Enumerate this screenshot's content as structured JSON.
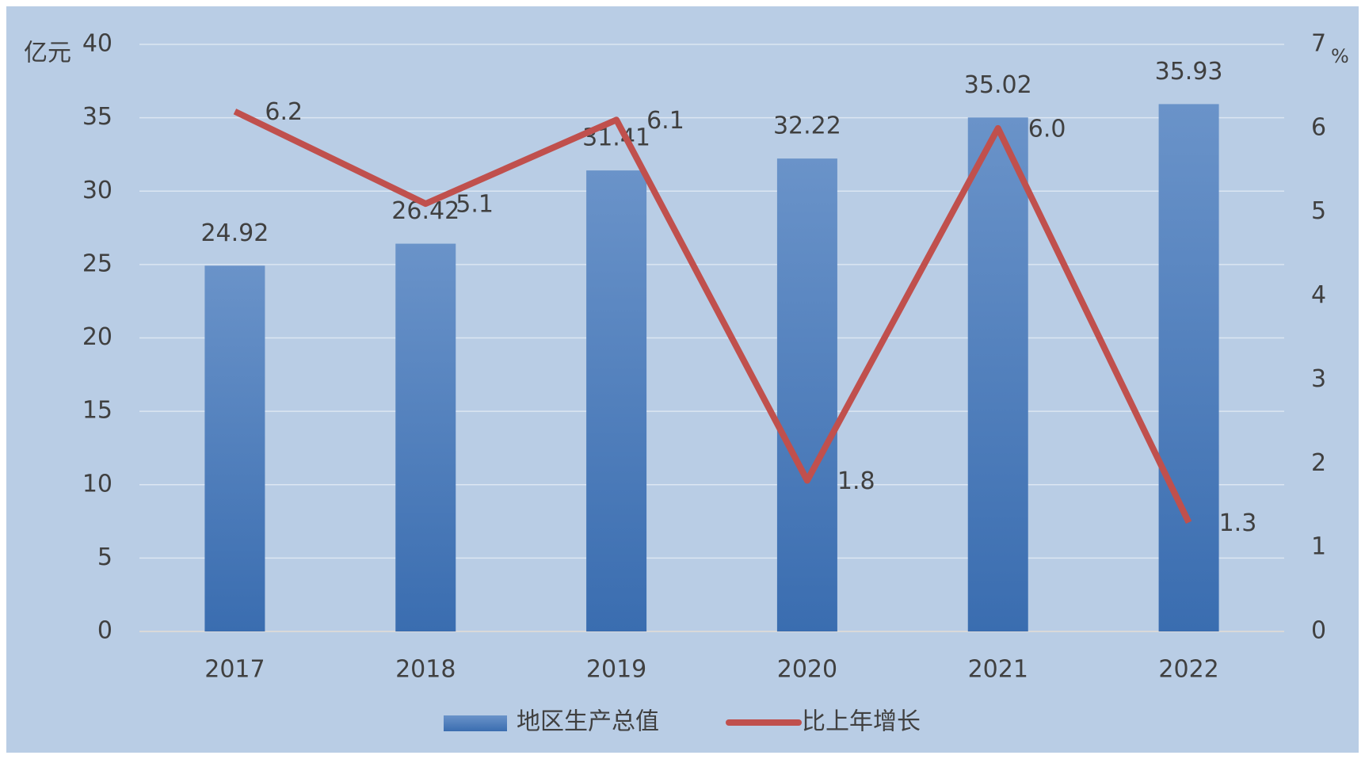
{
  "chart_data": {
    "type": "bar_line",
    "y_label": "亿元",
    "y2_label": "%",
    "categories": [
      "2017",
      "2018",
      "2019",
      "2020",
      "2021",
      "2022"
    ],
    "series": [
      {
        "name": "地区生产总值",
        "type": "bar",
        "color": "#4a7ebb",
        "values": [
          24.92,
          26.42,
          31.41,
          32.22,
          35.02,
          35.93
        ]
      },
      {
        "name": "比上年增长",
        "type": "line",
        "axis": "y2",
        "color": "#c0504d",
        "values": [
          6.2,
          5.1,
          6.1,
          1.8,
          6.0,
          1.3
        ],
        "value_labels": [
          "6.2",
          "5.1",
          "6.1",
          "1.8",
          "6.0",
          "1.3"
        ]
      }
    ],
    "ylim": [
      0,
      40
    ],
    "yticks": [
      0,
      5,
      10,
      15,
      20,
      25,
      30,
      35,
      40
    ],
    "y2lim": [
      0,
      7
    ],
    "y2ticks": [
      0,
      1,
      2,
      3,
      4,
      5,
      6,
      7
    ],
    "grid": true,
    "legend": "bottom"
  }
}
